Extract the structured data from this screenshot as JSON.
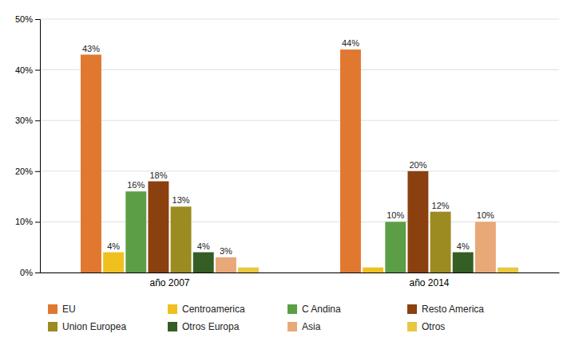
{
  "chart_data": {
    "type": "bar",
    "categories": [
      "año 2007",
      "año 2014"
    ],
    "series": [
      {
        "name": "EU",
        "color": "#E07830",
        "values": [
          43,
          44
        ],
        "value_labels": [
          "43%",
          "44%"
        ]
      },
      {
        "name": "Centroamerica",
        "color": "#F0C020",
        "values": [
          4,
          1
        ],
        "value_labels": [
          "4%",
          null
        ]
      },
      {
        "name": "C Andina",
        "color": "#5C9E45",
        "values": [
          16,
          10
        ],
        "value_labels": [
          "16%",
          "10%"
        ]
      },
      {
        "name": "Resto America",
        "color": "#8B4010",
        "values": [
          18,
          20
        ],
        "value_labels": [
          "18%",
          "20%"
        ]
      },
      {
        "name": "Union Europea",
        "color": "#9B8B20",
        "values": [
          13,
          12
        ],
        "value_labels": [
          "13%",
          "12%"
        ]
      },
      {
        "name": "Otros Europa",
        "color": "#355E25",
        "values": [
          4,
          4
        ],
        "value_labels": [
          "4%",
          "4%"
        ]
      },
      {
        "name": "Asia",
        "color": "#E8A878",
        "values": [
          3,
          10
        ],
        "value_labels": [
          "3%",
          "10%"
        ]
      },
      {
        "name": "Otros",
        "color": "#E8C840",
        "values": [
          1,
          1
        ],
        "value_labels": [
          null,
          null
        ]
      }
    ],
    "ylim": [
      0,
      50
    ],
    "yticks": [
      {
        "value": 0,
        "label": "0%"
      },
      {
        "value": 10,
        "label": "10%"
      },
      {
        "value": 20,
        "label": "20%"
      },
      {
        "value": 30,
        "label": "30%"
      },
      {
        "value": 40,
        "label": "40%"
      },
      {
        "value": 50,
        "label": "50%"
      }
    ],
    "grid": true,
    "data_labels": true,
    "legend": "bottom"
  }
}
